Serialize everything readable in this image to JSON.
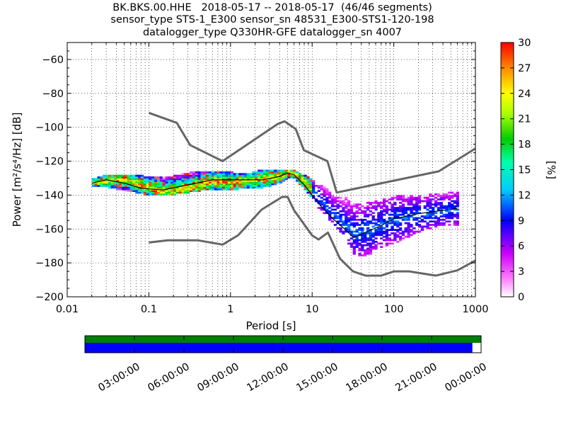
{
  "title_lines": [
    "BK.BKS.00.HHE   2018-05-17 -- 2018-05-17  (46/46 segments)",
    "sensor_type STS-1_E300 sensor_sn 48531_E300-STS1-120-198",
    "datalogger_type Q330HR-GFE datalogger_sn 4007"
  ],
  "colorbar": {
    "label": "[%]",
    "range": [
      0,
      30
    ],
    "ticks": [
      "0",
      "3",
      "6",
      "9",
      "12",
      "15",
      "18",
      "21",
      "24",
      "27",
      "30"
    ]
  },
  "timeline": {
    "ticks": [
      "03:00:00",
      "06:00:00",
      "09:00:00",
      "12:00:00",
      "15:00:00",
      "18:00:00",
      "21:00:00",
      "00:00:00"
    ],
    "top_bar_color": "#008000",
    "bottom_bar_color": "#0000ff",
    "bottom_bar_fraction": 0.978
  },
  "chart_data": {
    "type": "heatmap",
    "xlabel": "Period [s]",
    "ylabel": "Power [m²/s⁴/Hz] [dB]",
    "xscale": "log",
    "xlim": [
      0.01,
      1000
    ],
    "ylim": [
      -200,
      -50
    ],
    "x_ticks": [
      "0.01",
      "0.1",
      "1",
      "10",
      "100",
      "1000"
    ],
    "y_ticks": [
      "−60",
      "−80",
      "−100",
      "−120",
      "−140",
      "−160",
      "−180",
      "−200"
    ],
    "grid": "dotted",
    "nhnm": {
      "period": [
        0.1,
        0.22,
        0.32,
        0.8,
        3.8,
        4.6,
        6.3,
        7.9,
        15.4,
        20,
        354.8,
        1000
      ],
      "power": [
        -91.5,
        -97.4,
        -110.5,
        -120,
        -98,
        -96.5,
        -101,
        -113.5,
        -120,
        -138.5,
        -126,
        -112.5
      ]
    },
    "nlnm": {
      "period": [
        0.1,
        0.17,
        0.4,
        0.8,
        1.24,
        2.4,
        4.3,
        5,
        6,
        10,
        12,
        15.6,
        21.9,
        31.6,
        45,
        70,
        101,
        154,
        328,
        600,
        1000
      ],
      "power": [
        -168,
        -166.7,
        -166.7,
        -169.2,
        -163.7,
        -148.6,
        -141.1,
        -141.1,
        -149,
        -163.8,
        -166.2,
        -162.1,
        -177.5,
        -185,
        -187.5,
        -187.5,
        -185,
        -185,
        -187.5,
        -184.4,
        -178.6
      ]
    },
    "mode": {
      "period": [
        0.02,
        0.03,
        0.05,
        0.08,
        0.15,
        0.3,
        0.6,
        1,
        1.5,
        2.5,
        4,
        5,
        6,
        8,
        12,
        18,
        25,
        32,
        45,
        70,
        100,
        200,
        400,
        600
      ],
      "power": [
        -133,
        -132,
        -131,
        -135,
        -138,
        -136,
        -132,
        -133,
        -132,
        -131,
        -129,
        -127,
        -128,
        -133,
        -143,
        -152,
        -158,
        -163,
        -161,
        -158,
        -155,
        -152,
        -150,
        -149
      ]
    },
    "mean": {
      "period": [
        0.02,
        0.03,
        0.05,
        0.08,
        0.15,
        0.3,
        0.6,
        1,
        1.5,
        2.5,
        4,
        5,
        6,
        8,
        12,
        18,
        25,
        32,
        45,
        70,
        100,
        200,
        400,
        600
      ],
      "power": [
        -133,
        -131,
        -133,
        -136,
        -137,
        -134,
        -131,
        -131,
        -131,
        -131,
        -129,
        -127,
        -128,
        -134,
        -145,
        -154,
        -160,
        -165,
        -162,
        -158,
        -154,
        -151,
        -149,
        -148
      ]
    },
    "density_band": {
      "period": [
        0.02,
        0.03,
        0.05,
        0.08,
        0.15,
        0.3,
        0.6,
        1,
        1.5,
        2.5,
        4,
        5,
        6,
        8,
        12,
        18,
        25,
        32,
        45,
        70,
        100,
        200,
        400,
        600
      ],
      "upper": [
        -131,
        -128,
        -129,
        -129,
        -130,
        -127,
        -126,
        -127,
        -128,
        -125,
        -126,
        -125,
        -126,
        -129,
        -134,
        -140,
        -142,
        -146,
        -145,
        -143,
        -141,
        -140,
        -139,
        -139
      ],
      "lower": [
        -135,
        -136,
        -138,
        -140,
        -141,
        -139,
        -137,
        -138,
        -136,
        -136,
        -133,
        -130,
        -131,
        -138,
        -149,
        -158,
        -166,
        -176,
        -176,
        -172,
        -169,
        -162,
        -158,
        -158
      ]
    }
  }
}
